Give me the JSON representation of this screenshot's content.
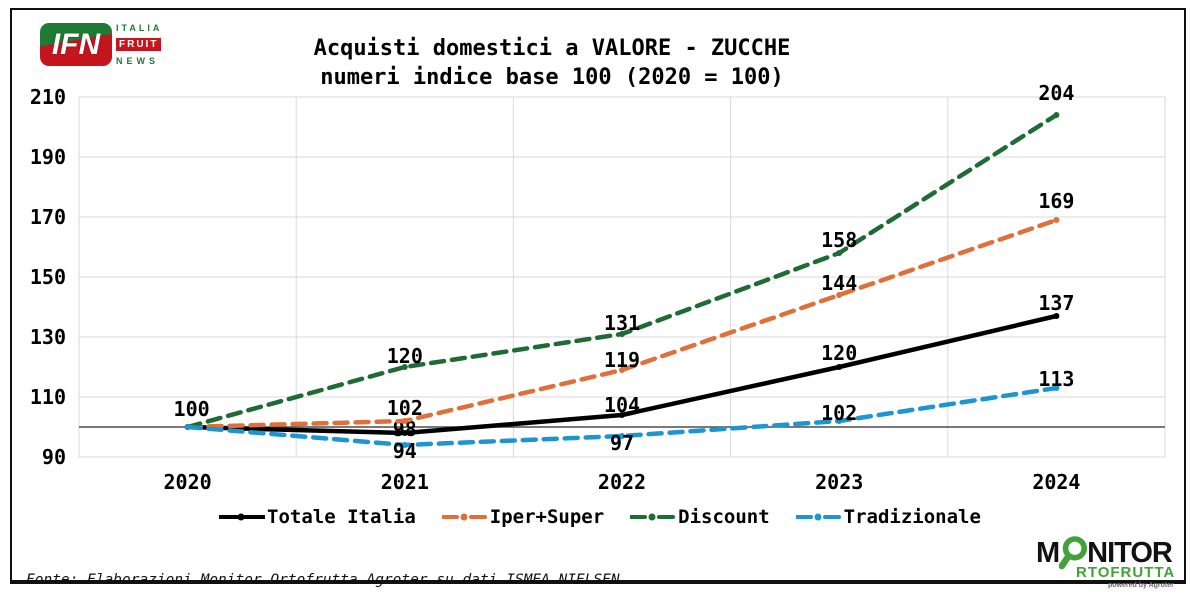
{
  "header": {
    "title_line1": "Acquisti domestici a VALORE - ZUCCHE",
    "title_line2": "numeri indice base 100 (2020 = 100)"
  },
  "chart_data": {
    "type": "line",
    "title": "Acquisti domestici a VALORE - ZUCCHE",
    "subtitle": "numeri indice base 100 (2020 = 100)",
    "categories": [
      "2020",
      "2021",
      "2022",
      "2023",
      "2024"
    ],
    "series": [
      {
        "name": "Totale Italia",
        "color": "#000000",
        "dash": "solid",
        "values": [
          100,
          98,
          104,
          120,
          137
        ],
        "show_label": [
          true,
          true,
          true,
          true,
          true
        ],
        "label_dy": [
          -11,
          3,
          -3,
          -7,
          -6
        ],
        "label_dx": [
          4,
          0,
          0,
          0,
          0
        ]
      },
      {
        "name": "Iper+Super",
        "color": "#E0703A",
        "dash": "dashed",
        "values": [
          100,
          102,
          119,
          144,
          169
        ],
        "show_label": [
          false,
          true,
          true,
          true,
          true
        ],
        "label_dy": [
          null,
          -6,
          -3,
          -5,
          -12
        ],
        "label_dx": [
          0,
          0,
          0,
          0,
          0
        ]
      },
      {
        "name": "Discount",
        "color": "#1E6B34",
        "dash": "dashed",
        "values": [
          100,
          120,
          131,
          158,
          204
        ],
        "show_label": [
          false,
          true,
          true,
          true,
          true
        ],
        "label_dy": [
          null,
          -4,
          -4,
          -6,
          -15
        ],
        "label_dx": [
          0,
          0,
          0,
          0,
          0
        ]
      },
      {
        "name": "Tradizionale",
        "color": "#1C95D0",
        "dash": "dashed",
        "values": [
          100,
          94,
          97,
          102,
          113
        ],
        "show_label": [
          false,
          true,
          true,
          true,
          true
        ],
        "label_dy": [
          null,
          13,
          14,
          -1,
          -2
        ],
        "label_dx": [
          0,
          0,
          0,
          0,
          0
        ]
      }
    ],
    "ylim": [
      90,
      210
    ],
    "yticks": [
      90,
      110,
      130,
      150,
      170,
      190,
      210
    ],
    "baseline": 100,
    "grid": true,
    "legend_position": "bottom",
    "colors": {
      "grid": "#D9D9D9",
      "baseline": "#4D4D4D"
    }
  },
  "footer": {
    "source": "Fonte: Elaborazioni Monitor Ortofrutta Agroter su dati ISMEA NIELSEN"
  },
  "logos": {
    "ifn": {
      "abbr": "IFN",
      "line1": "ITALIA",
      "line2": "FRUIT",
      "line3": "NEWS"
    },
    "monitor": {
      "m": "M",
      "rest": "NITOR",
      "line2": "RTOFRUTTA",
      "powered": "powered by Agroter"
    }
  }
}
